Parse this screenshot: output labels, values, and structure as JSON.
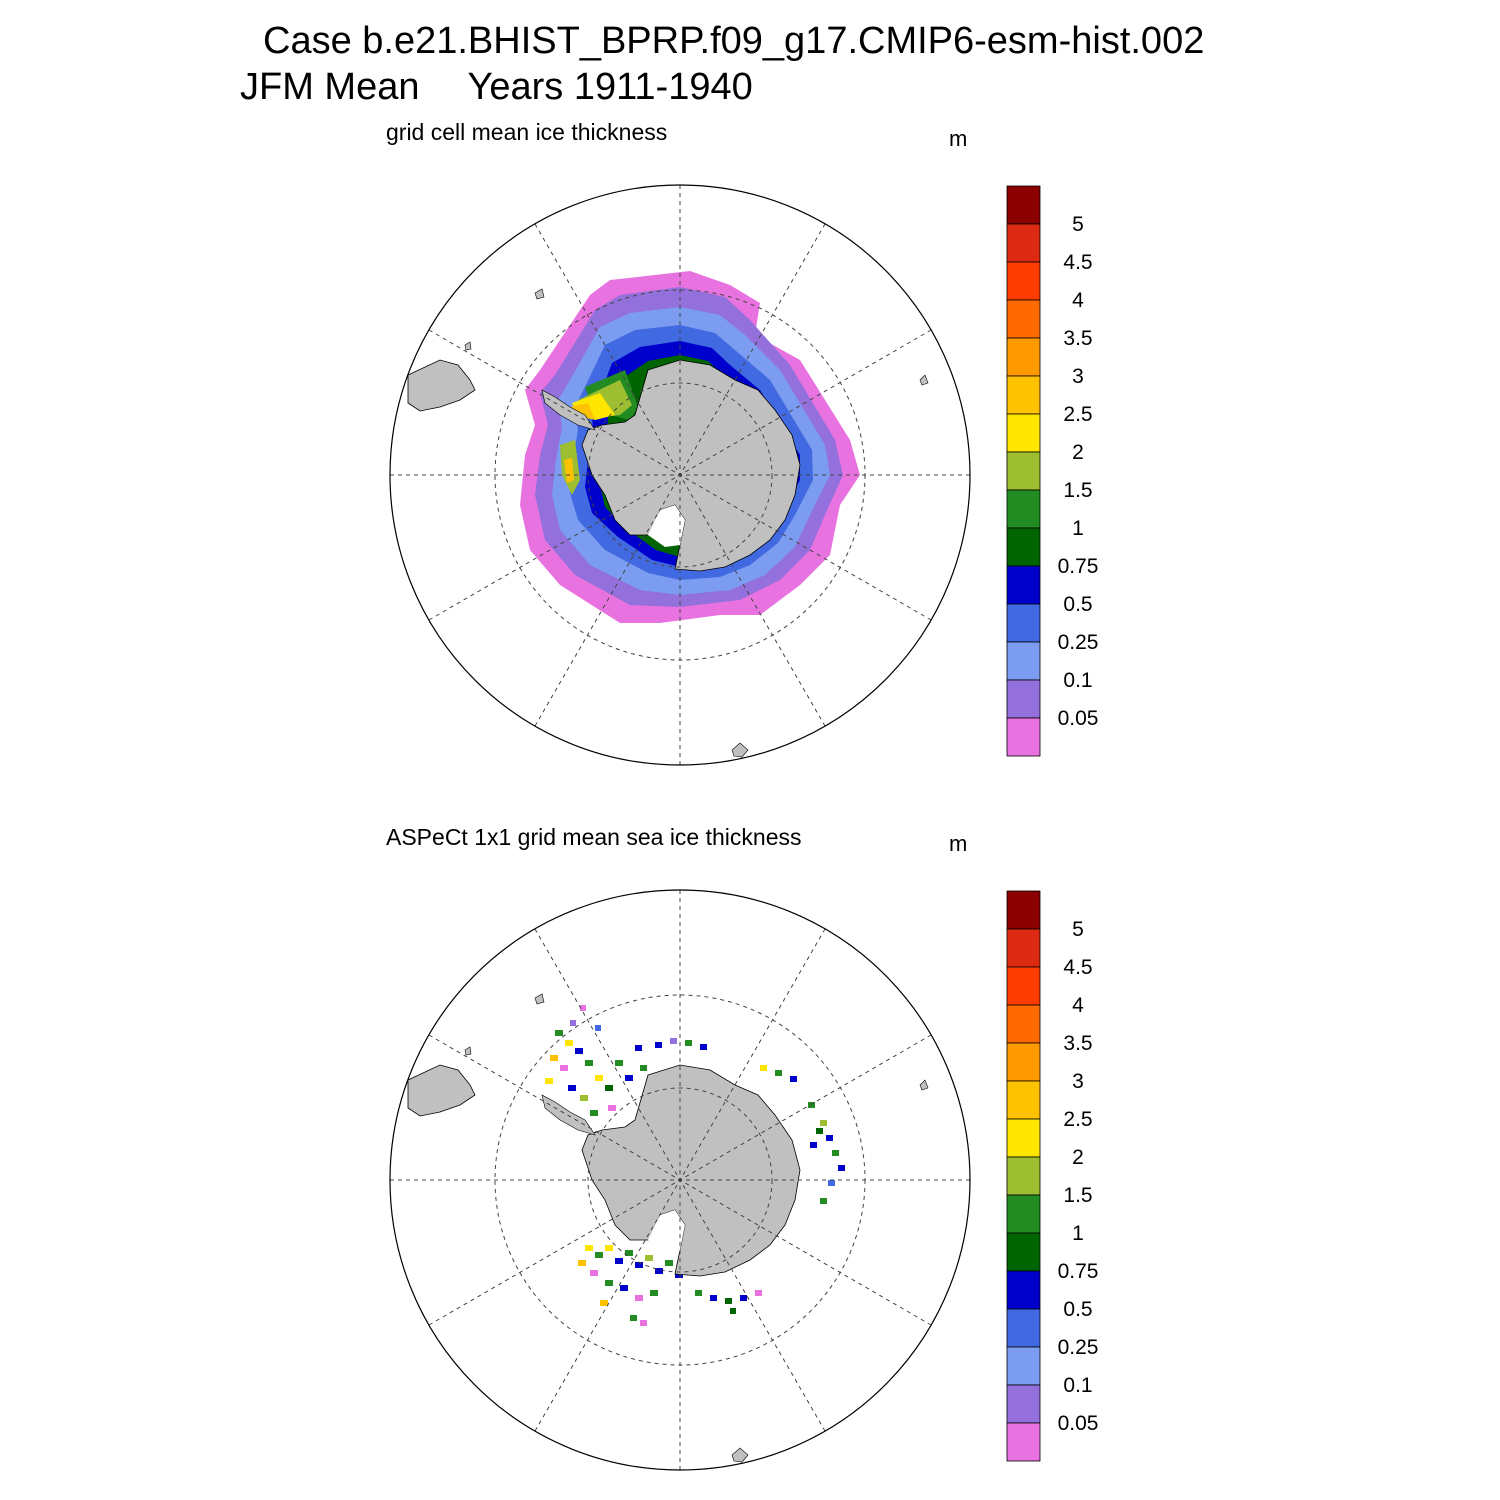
{
  "header": {
    "title_line1": "Case b.e21.BHIST_BPRP.f09_g17.CMIP6-esm-hist.002",
    "season": "JFM Mean",
    "years": "Years 1911-1940"
  },
  "panels": [
    {
      "subtitle": "grid cell mean ice thickness",
      "units": "m"
    },
    {
      "subtitle": "ASPeCt 1x1 grid mean sea ice thickness",
      "units": "m"
    }
  ],
  "colorbar": {
    "labels": [
      "5",
      "4.5",
      "4",
      "3.5",
      "3",
      "2.5",
      "2",
      "1.5",
      "1",
      "0.75",
      "0.5",
      "0.25",
      "0.1",
      "0.05"
    ],
    "colors_top_to_bottom": [
      "#8b0000",
      "#dd2a12",
      "#ff3c00",
      "#ff6a00",
      "#ff9900",
      "#ffc200",
      "#ffe600",
      "#9ebe31",
      "#228b22",
      "#006400",
      "#0000cd",
      "#4169e1",
      "#7b9cf0",
      "#9370db",
      "#e873e0"
    ]
  },
  "map_colors": {
    "land": "#c0c0c0",
    "shelf_ice": "#ffffff"
  }
}
